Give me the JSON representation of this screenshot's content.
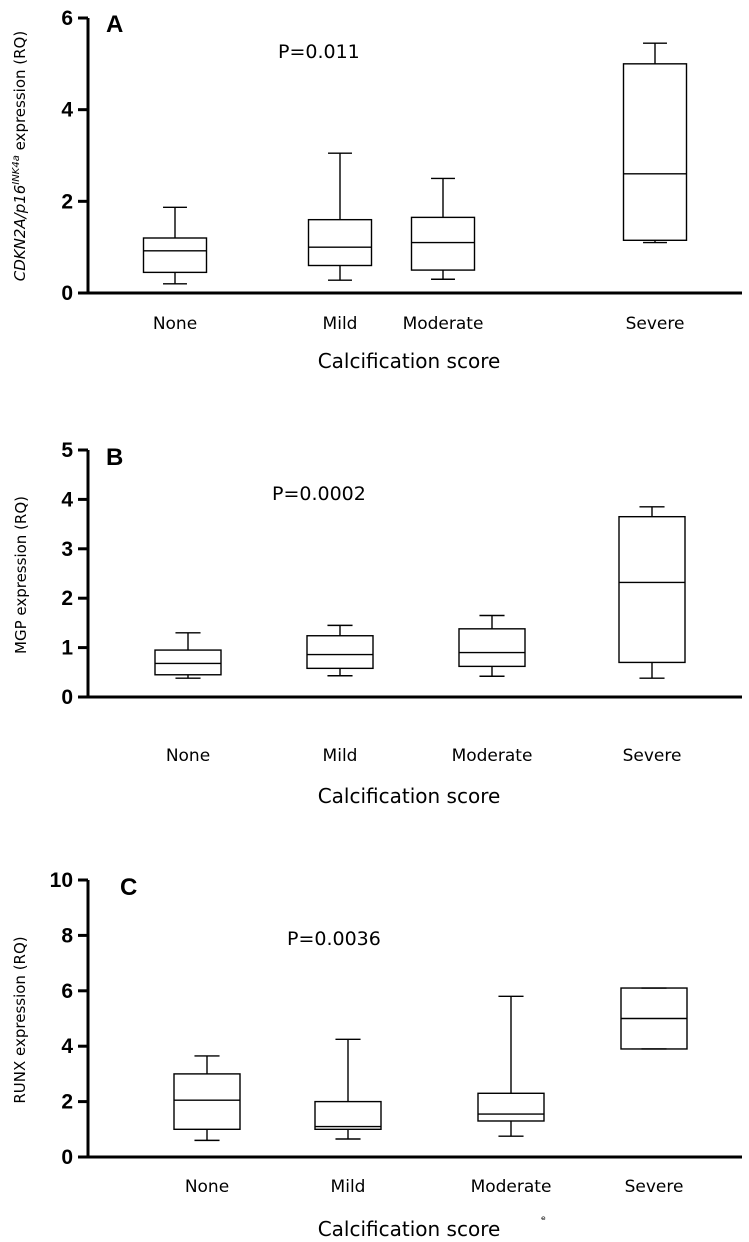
{
  "chart_data": [
    {
      "type": "box",
      "panel_label": "A",
      "annotation": "P=0.011",
      "ylabel_parts": [
        "CDKN2A/p16",
        "INK4a",
        " expression (RQ)"
      ],
      "xlabel": "Calcification score",
      "categories": [
        "None",
        "Mild",
        "Moderate",
        "Severe"
      ],
      "ylim": [
        0,
        6
      ],
      "yticks": [
        0,
        2,
        4,
        6
      ],
      "boxes": [
        {
          "min": 0.2,
          "q1": 0.45,
          "median": 0.92,
          "q3": 1.2,
          "max": 1.87
        },
        {
          "min": 0.28,
          "q1": 0.6,
          "median": 1.0,
          "q3": 1.6,
          "max": 3.05
        },
        {
          "min": 0.3,
          "q1": 0.5,
          "median": 1.1,
          "q3": 1.65,
          "max": 2.5
        },
        {
          "min": 1.1,
          "q1": 1.15,
          "median": 2.6,
          "q3": 5.0,
          "max": 5.45
        }
      ]
    },
    {
      "type": "box",
      "panel_label": "B",
      "annotation": "P=0.0002",
      "ylabel": "MGP expression (RQ)",
      "xlabel": "Calcification score",
      "categories": [
        "None",
        "Mild",
        "Moderate",
        "Severe"
      ],
      "ylim": [
        0,
        5
      ],
      "yticks": [
        0,
        1,
        2,
        3,
        4,
        5
      ],
      "boxes": [
        {
          "min": 0.38,
          "q1": 0.45,
          "median": 0.68,
          "q3": 0.95,
          "max": 1.3
        },
        {
          "min": 0.43,
          "q1": 0.58,
          "median": 0.86,
          "q3": 1.24,
          "max": 1.45
        },
        {
          "min": 0.42,
          "q1": 0.62,
          "median": 0.9,
          "q3": 1.38,
          "max": 1.65
        },
        {
          "min": 0.38,
          "q1": 0.7,
          "median": 2.32,
          "q3": 3.65,
          "max": 3.85
        }
      ]
    },
    {
      "type": "box",
      "panel_label": "C",
      "annotation": "P=0.0036",
      "ylabel": "RUNX expression (RQ)",
      "xlabel": "Calcification score",
      "categories": [
        "None",
        "Mild",
        "Moderate",
        "Severe"
      ],
      "ylim": [
        0,
        10
      ],
      "yticks": [
        0,
        2,
        4,
        6,
        8,
        10
      ],
      "boxes": [
        {
          "min": 0.6,
          "q1": 1.0,
          "median": 2.05,
          "q3": 3.0,
          "max": 3.65
        },
        {
          "min": 0.65,
          "q1": 1.0,
          "median": 1.1,
          "q3": 2.0,
          "max": 4.25
        },
        {
          "min": 0.75,
          "q1": 1.3,
          "median": 1.55,
          "q3": 2.3,
          "max": 5.8
        },
        {
          "min": 3.9,
          "q1": 3.9,
          "median": 5.0,
          "q3": 6.1,
          "max": 6.1
        }
      ]
    }
  ],
  "stray_mark": "ᵉ"
}
